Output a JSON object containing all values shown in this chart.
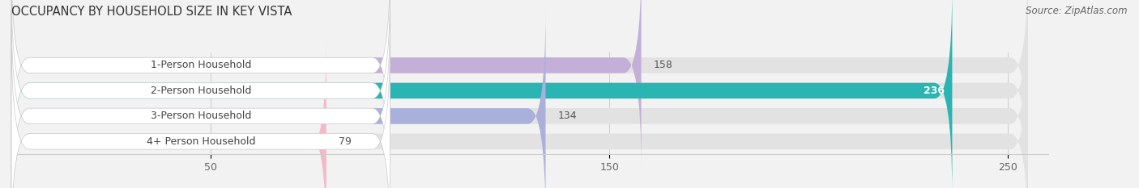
{
  "title": "OCCUPANCY BY HOUSEHOLD SIZE IN KEY VISTA",
  "source": "Source: ZipAtlas.com",
  "categories": [
    "1-Person Household",
    "2-Person Household",
    "3-Person Household",
    "4+ Person Household"
  ],
  "values": [
    158,
    236,
    134,
    79
  ],
  "bar_colors": [
    "#c4afd8",
    "#2ab5b2",
    "#aab0dc",
    "#f5b8c8"
  ],
  "label_colors": [
    "#555555",
    "#ffffff",
    "#555555",
    "#555555"
  ],
  "xlim_max": 260,
  "bg_bar_max": 255,
  "xticks": [
    50,
    150,
    250
  ],
  "bar_height": 0.62,
  "background_color": "#f2f2f2",
  "bar_bg_color": "#e2e2e2",
  "title_fontsize": 10.5,
  "source_fontsize": 8.5,
  "label_fontsize": 9,
  "value_fontsize": 9,
  "tick_fontsize": 9,
  "label_box_color": "#ffffff"
}
